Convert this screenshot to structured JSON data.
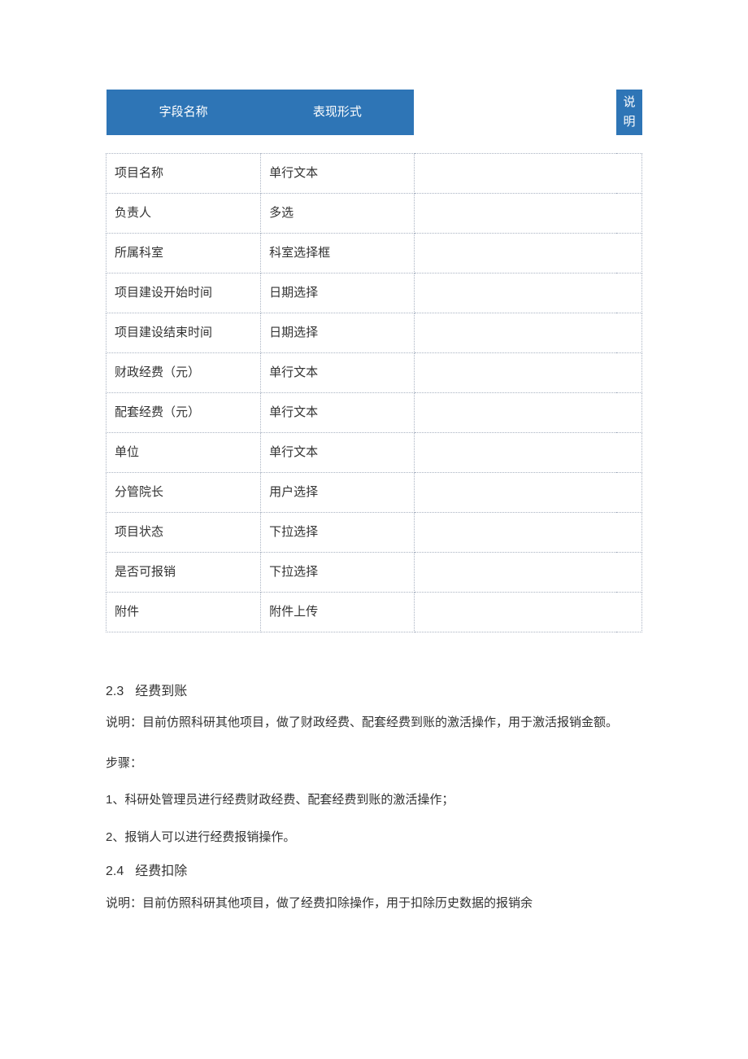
{
  "table": {
    "headers": [
      "字段名称",
      "表现形式",
      "说明"
    ],
    "header_bg": "#2e75b6",
    "header_color": "#ffffff",
    "border_color": "#aab3c2",
    "rows": [
      {
        "c0": "项目名称",
        "c1": "单行文本",
        "c2": ""
      },
      {
        "c0": "负责人",
        "c1": "多选",
        "c2": ""
      },
      {
        "c0": "所属科室",
        "c1": "科室选择框",
        "c2": ""
      },
      {
        "c0": "项目建设开始时间",
        "c1": "日期选择",
        "c2": ""
      },
      {
        "c0": "项目建设结束时间",
        "c1": "日期选择",
        "c2": ""
      },
      {
        "c0": "财政经费（元）",
        "c1": "单行文本",
        "c2": ""
      },
      {
        "c0": "配套经费（元）",
        "c1": "单行文本",
        "c2": ""
      },
      {
        "c0": "单位",
        "c1": "单行文本",
        "c2": ""
      },
      {
        "c0": "分管院长",
        "c1": "用户选择",
        "c2": ""
      },
      {
        "c0": "项目状态",
        "c1": "下拉选择",
        "c2": ""
      },
      {
        "c0": "是否可报销",
        "c1": "下拉选择",
        "c2": ""
      },
      {
        "c0": "附件",
        "c1": "附件上传",
        "c2": ""
      }
    ]
  },
  "section23": {
    "num": "2.3",
    "title": "经费到账",
    "desc": "说明：目前仿照科研其他项目，做了财政经费、配套经费到账的激活操作，用于激活报销金额。",
    "steps_label": "步骤：",
    "step1": "1、科研处管理员进行经费财政经费、配套经费到账的激活操作；",
    "step2": "2、报销人可以进行经费报销操作。"
  },
  "section24": {
    "num": "2.4",
    "title": "经费扣除",
    "desc": "说明：目前仿照科研其他项目，做了经费扣除操作，用于扣除历史数据的报销余"
  }
}
